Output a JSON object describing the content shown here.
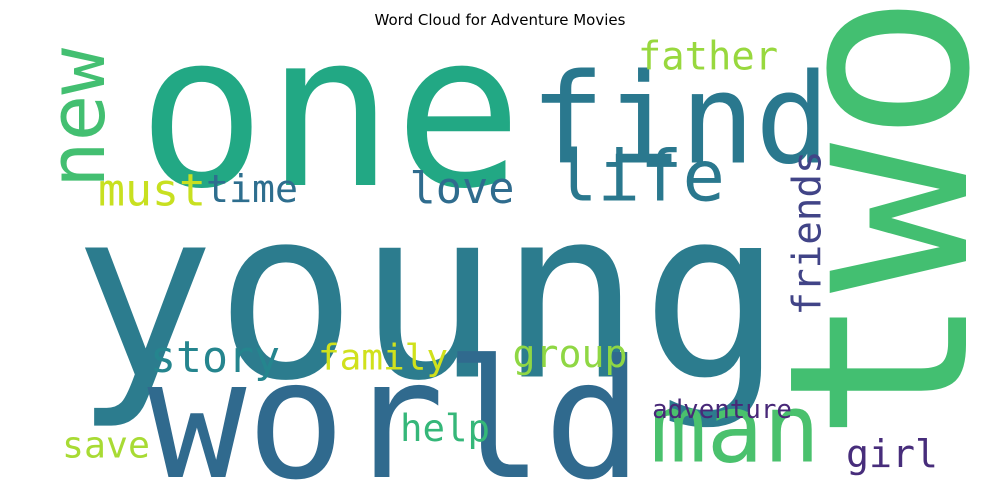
{
  "chart_data": {
    "type": "wordcloud",
    "title": "Word Cloud for Adventure Movies",
    "colormap": "viridis",
    "words": [
      {
        "text": "young",
        "color": "#2c7c8e"
      },
      {
        "text": "one",
        "color": "#22a884"
      },
      {
        "text": "two",
        "color": "#43bf71"
      },
      {
        "text": "world",
        "color": "#306a8e"
      },
      {
        "text": "find",
        "color": "#2a788e"
      },
      {
        "text": "life",
        "color": "#2a788e"
      },
      {
        "text": "new",
        "color": "#43bf71"
      },
      {
        "text": "man",
        "color": "#4ac16d"
      },
      {
        "text": "father",
        "color": "#98d83e"
      },
      {
        "text": "love",
        "color": "#2f6c8e"
      },
      {
        "text": "must",
        "color": "#c8e020"
      },
      {
        "text": "time",
        "color": "#2e6e8e"
      },
      {
        "text": "friends",
        "color": "#414487"
      },
      {
        "text": "story",
        "color": "#25858e"
      },
      {
        "text": "family",
        "color": "#d0e11c"
      },
      {
        "text": "group",
        "color": "#8fd744"
      },
      {
        "text": "help",
        "color": "#35b779"
      },
      {
        "text": "save",
        "color": "#a8db34"
      },
      {
        "text": "adventure",
        "color": "#482878"
      },
      {
        "text": "girl",
        "color": "#472d7b"
      }
    ]
  }
}
